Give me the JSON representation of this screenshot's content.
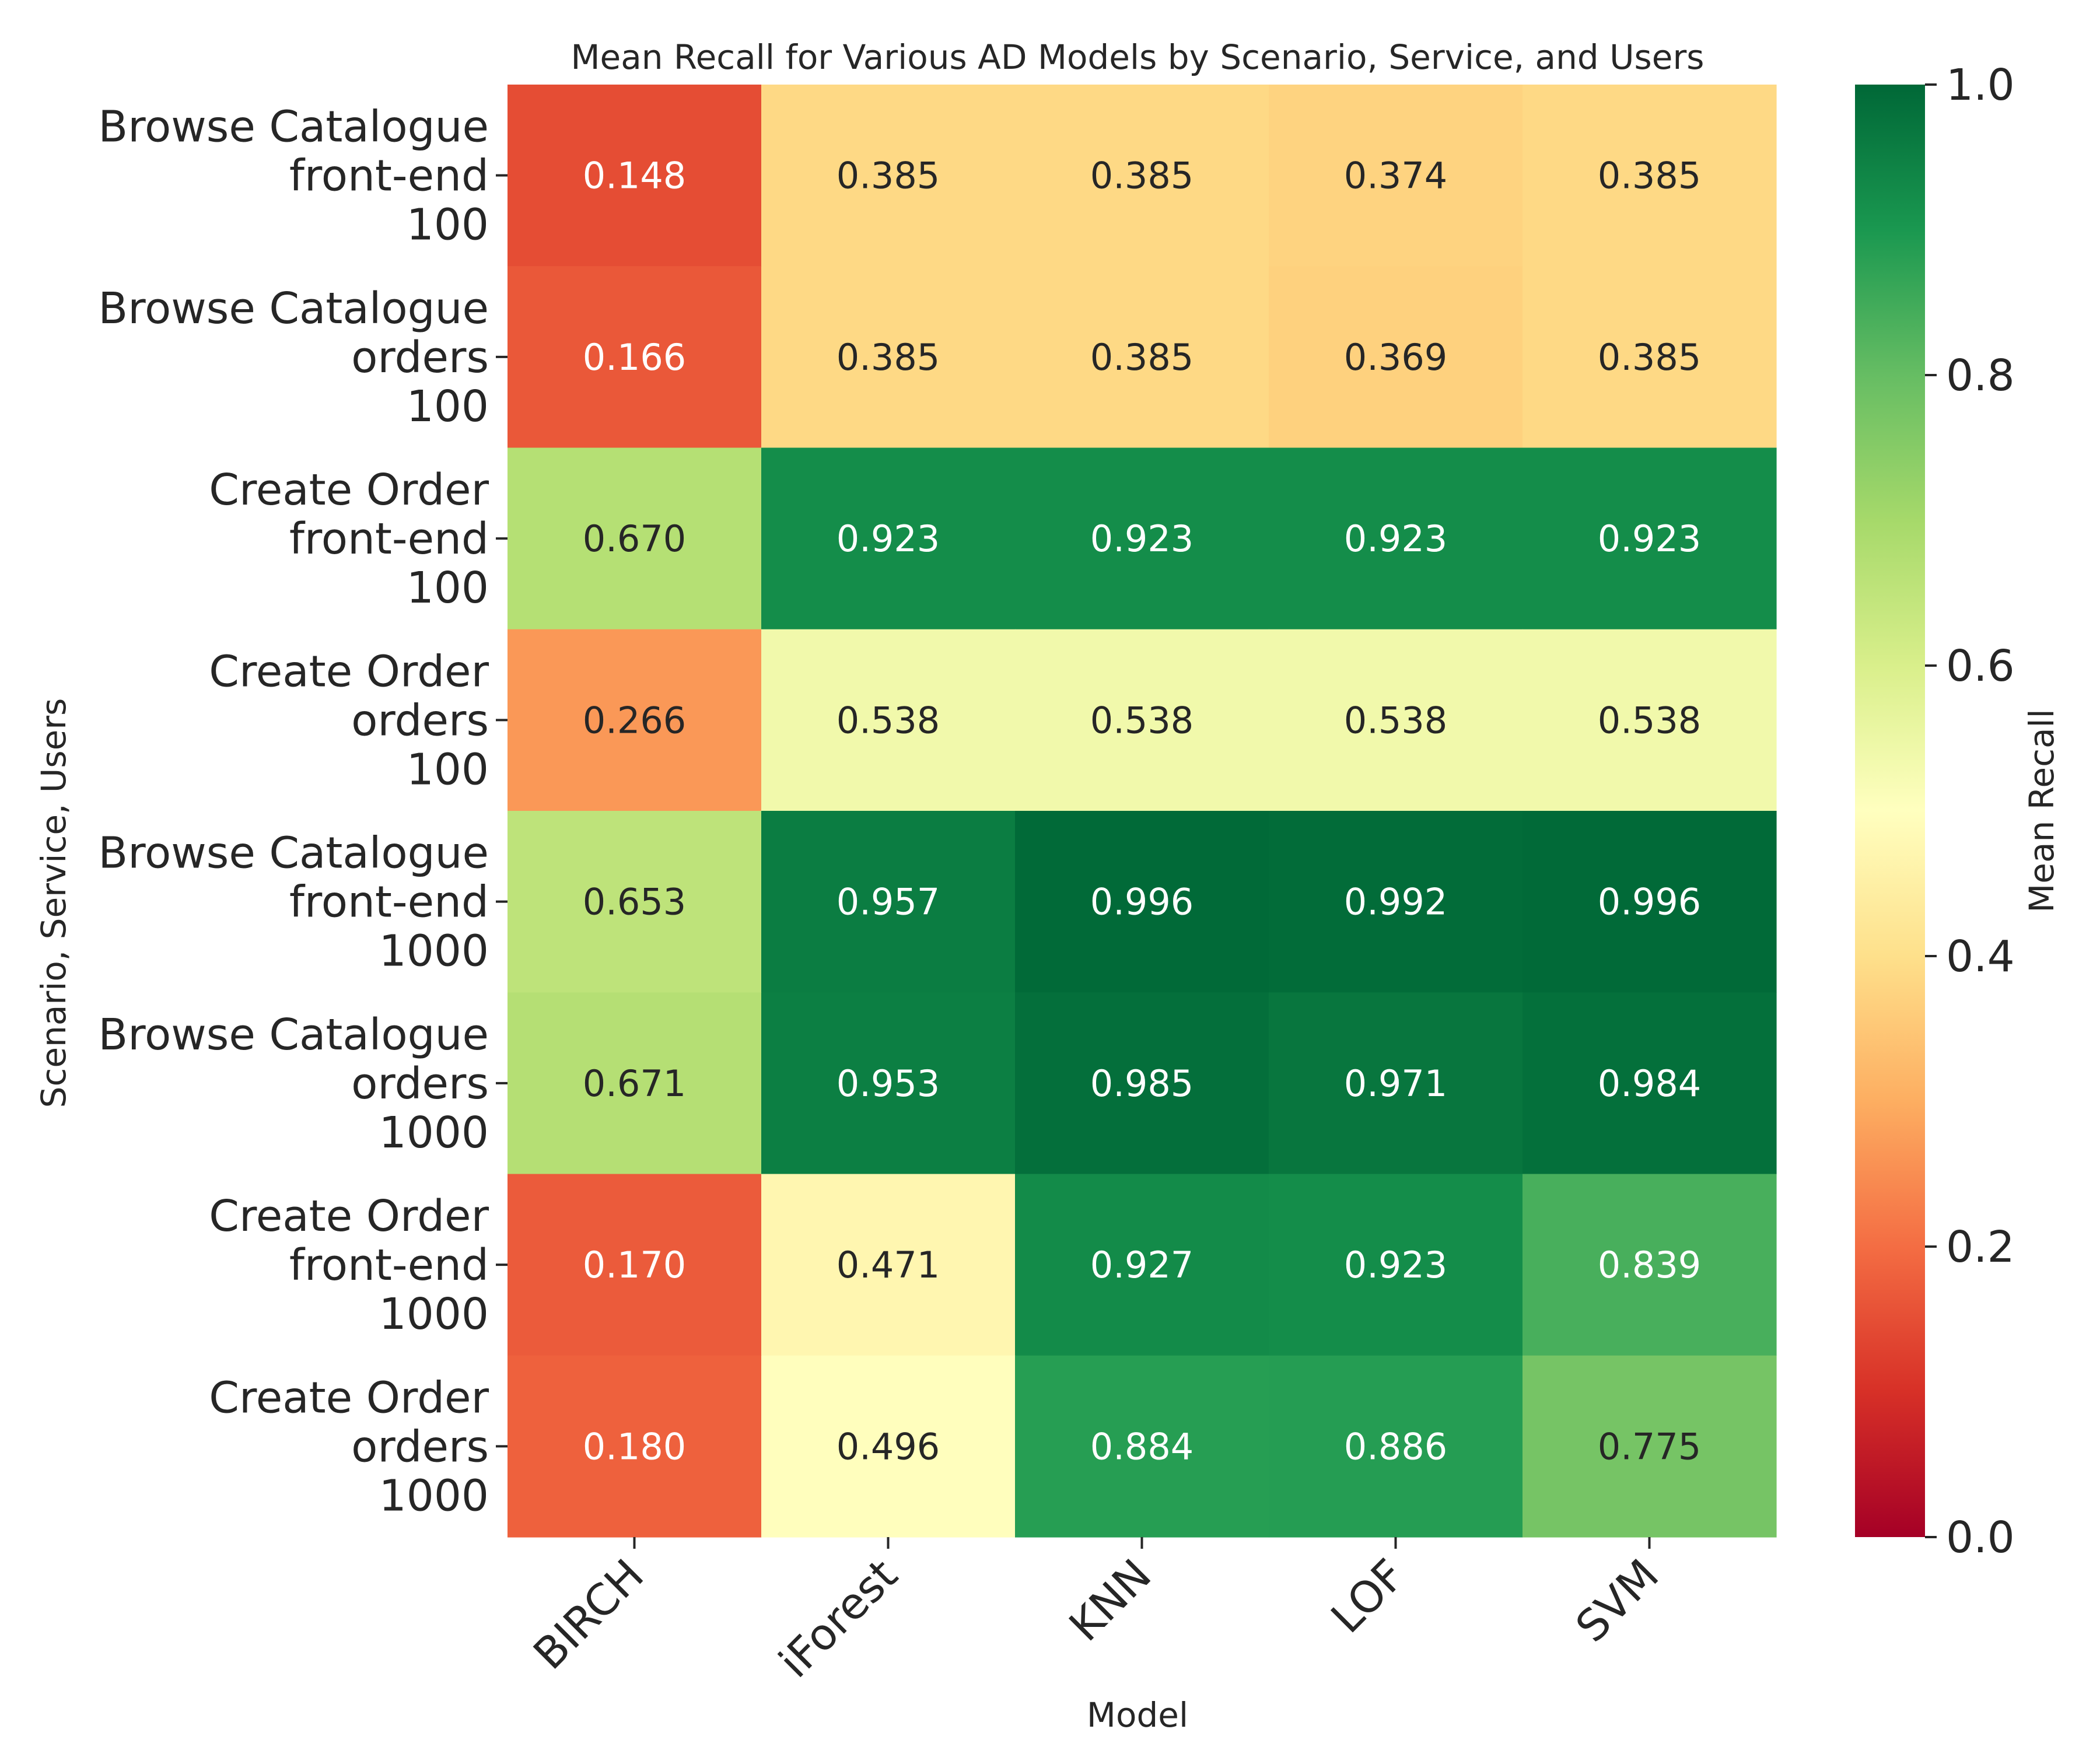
{
  "chart_data": {
    "type": "heatmap",
    "title": "Mean Recall for Various AD Models by Scenario, Service, and Users",
    "xlabel": "Model",
    "ylabel": "Scenario, Service, Users",
    "colorbar_label": "Mean Recall",
    "colormap": "RdYlGn",
    "vmin": 0.0,
    "vmax": 1.0,
    "colorbar_ticks": [
      "0.0",
      "0.2",
      "0.4",
      "0.6",
      "0.8",
      "1.0"
    ],
    "columns": [
      "BIRCH",
      "iForest",
      "KNN",
      "LOF",
      "SVM"
    ],
    "rows": [
      {
        "label": [
          "Browse Catalogue",
          "front-end",
          "100"
        ],
        "values": [
          0.148,
          0.385,
          0.385,
          0.374,
          0.385
        ]
      },
      {
        "label": [
          "Browse Catalogue",
          "orders",
          "100"
        ],
        "values": [
          0.166,
          0.385,
          0.385,
          0.369,
          0.385
        ]
      },
      {
        "label": [
          "Create Order",
          "front-end",
          "100"
        ],
        "values": [
          0.67,
          0.923,
          0.923,
          0.923,
          0.923
        ]
      },
      {
        "label": [
          "Create Order",
          "orders",
          "100"
        ],
        "values": [
          0.266,
          0.538,
          0.538,
          0.538,
          0.538
        ]
      },
      {
        "label": [
          "Browse Catalogue",
          "front-end",
          "1000"
        ],
        "values": [
          0.653,
          0.957,
          0.996,
          0.992,
          0.996
        ]
      },
      {
        "label": [
          "Browse Catalogue",
          "orders",
          "1000"
        ],
        "values": [
          0.671,
          0.953,
          0.985,
          0.971,
          0.984
        ]
      },
      {
        "label": [
          "Create Order",
          "front-end",
          "1000"
        ],
        "values": [
          0.17,
          0.471,
          0.927,
          0.923,
          0.839
        ]
      },
      {
        "label": [
          "Create Order",
          "orders",
          "1000"
        ],
        "values": [
          0.18,
          0.496,
          0.884,
          0.886,
          0.775
        ]
      }
    ]
  }
}
